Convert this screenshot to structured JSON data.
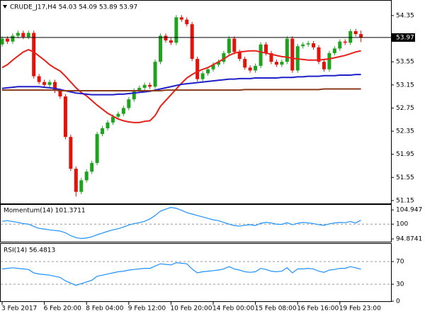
{
  "chart_data": [
    {
      "type": "candlestick",
      "title": "CRUDE_J17,H4 54.03 54.09 53.89 53.97",
      "categories": [
        "3 Feb 2017",
        null,
        null,
        null,
        null,
        null,
        null,
        null,
        "6 Feb 20:00",
        null,
        null,
        null,
        null,
        null,
        null,
        null,
        "8 Feb 04:00",
        null,
        null,
        null,
        null,
        null,
        null,
        null,
        "9 Feb 12:00",
        null,
        null,
        null,
        null,
        null,
        null,
        null,
        "10 Feb 20:00",
        null,
        null,
        null,
        null,
        null,
        null,
        null,
        "14 Feb 00:00",
        null,
        null,
        null,
        null,
        null,
        null,
        null,
        "15 Feb 08:00",
        null,
        null,
        null,
        null,
        null,
        null,
        null,
        "16 Feb 16:00",
        null,
        null,
        null,
        null,
        null,
        null,
        null,
        "19 Feb 23:00",
        null,
        null,
        null,
        null
      ],
      "open": [
        53.85,
        53.95,
        53.9,
        54.0,
        54.05,
        53.98,
        54.05,
        53.3,
        53.2,
        53.15,
        53.2,
        53.05,
        52.95,
        52.25,
        51.7,
        51.3,
        51.5,
        51.65,
        51.8,
        52.3,
        52.4,
        52.5,
        52.6,
        52.65,
        52.75,
        52.9,
        53.05,
        53.1,
        53.15,
        53.12,
        53.55,
        54.0,
        53.92,
        53.88,
        54.32,
        54.28,
        54.2,
        53.6,
        53.25,
        53.35,
        53.42,
        53.5,
        53.55,
        53.7,
        53.95,
        53.72,
        53.6,
        53.45,
        53.4,
        53.48,
        53.85,
        53.7,
        53.55,
        53.5,
        53.55,
        53.95,
        53.4,
        53.82,
        53.85,
        53.87,
        53.8,
        53.55,
        53.42,
        53.7,
        53.78,
        53.9,
        53.88,
        54.08,
        54.03
      ],
      "high": [
        53.99,
        53.99,
        54.04,
        54.09,
        54.09,
        54.09,
        54.09,
        53.34,
        53.24,
        53.24,
        53.24,
        53.09,
        52.99,
        52.29,
        51.74,
        51.54,
        51.69,
        51.84,
        52.34,
        52.44,
        52.54,
        52.64,
        52.69,
        52.79,
        52.94,
        53.09,
        53.14,
        53.19,
        53.19,
        53.59,
        54.04,
        54.04,
        53.96,
        54.36,
        54.36,
        54.32,
        54.24,
        53.64,
        53.39,
        53.46,
        53.54,
        53.59,
        53.74,
        53.99,
        53.99,
        53.76,
        53.64,
        53.49,
        53.52,
        53.89,
        53.89,
        53.74,
        53.59,
        53.59,
        53.99,
        53.99,
        53.86,
        53.89,
        53.91,
        53.91,
        53.84,
        53.59,
        53.74,
        53.82,
        53.94,
        53.94,
        54.12,
        54.12,
        54.09
      ],
      "low": [
        53.81,
        53.86,
        53.86,
        53.96,
        53.94,
        53.94,
        53.26,
        53.16,
        53.11,
        53.11,
        53.01,
        52.91,
        52.21,
        51.66,
        51.22,
        51.26,
        51.46,
        51.61,
        51.76,
        52.26,
        52.36,
        52.46,
        52.56,
        52.61,
        52.71,
        52.86,
        53.01,
        53.06,
        53.08,
        53.08,
        53.51,
        53.88,
        53.84,
        53.84,
        54.24,
        54.16,
        53.56,
        53.21,
        53.21,
        53.31,
        53.38,
        53.46,
        53.51,
        53.66,
        53.68,
        53.56,
        53.41,
        53.36,
        53.36,
        53.44,
        53.66,
        53.51,
        53.46,
        53.46,
        53.51,
        53.36,
        53.36,
        53.78,
        53.81,
        53.76,
        53.51,
        53.38,
        53.38,
        53.66,
        53.74,
        53.84,
        53.84,
        53.99,
        53.89
      ],
      "close": [
        53.95,
        53.9,
        54.0,
        54.05,
        53.98,
        54.05,
        53.3,
        53.2,
        53.15,
        53.2,
        53.05,
        52.95,
        52.25,
        51.7,
        51.3,
        51.5,
        51.65,
        51.8,
        52.3,
        52.4,
        52.5,
        52.6,
        52.65,
        52.75,
        52.9,
        53.05,
        53.1,
        53.15,
        53.12,
        53.55,
        54.0,
        53.92,
        53.88,
        54.32,
        54.28,
        54.2,
        53.6,
        53.25,
        53.35,
        53.42,
        53.5,
        53.55,
        53.7,
        53.95,
        53.72,
        53.6,
        53.45,
        53.4,
        53.48,
        53.85,
        53.7,
        53.55,
        53.5,
        53.55,
        53.95,
        53.4,
        53.82,
        53.85,
        53.87,
        53.8,
        53.55,
        53.42,
        53.7,
        53.78,
        53.9,
        53.88,
        54.08,
        54.03,
        53.97
      ],
      "up_color": "#1fa31f",
      "down_color": "#e3120b",
      "series": [
        {
          "color": "#e8201a",
          "values": [
            53.45,
            53.5,
            53.58,
            53.65,
            53.72,
            53.76,
            53.72,
            53.65,
            53.58,
            53.5,
            53.44,
            53.39,
            53.3,
            53.2,
            53.1,
            53.02,
            52.96,
            52.88,
            52.8,
            52.73,
            52.66,
            52.61,
            52.56,
            52.53,
            52.51,
            52.5,
            52.5,
            52.52,
            52.53,
            52.62,
            52.78,
            52.88,
            52.98,
            53.08,
            53.18,
            53.27,
            53.33,
            53.38,
            53.42,
            53.45,
            53.5,
            53.55,
            53.6,
            53.66,
            53.7,
            53.72,
            53.73,
            53.74,
            53.74,
            53.72,
            53.7,
            53.68,
            53.66,
            53.64,
            53.63,
            53.61,
            53.6,
            53.59,
            53.58,
            53.58,
            53.58,
            53.59,
            53.6,
            53.62,
            53.64,
            53.66,
            53.69,
            53.72,
            53.74
          ]
        },
        {
          "color": "#2020c8",
          "values": [
            53.09,
            53.1,
            53.11,
            53.12,
            53.12,
            53.12,
            53.12,
            53.12,
            53.11,
            53.1,
            53.09,
            53.07,
            53.05,
            53.03,
            53.01,
            53.0,
            52.99,
            52.98,
            52.98,
            52.98,
            52.98,
            52.98,
            52.99,
            52.99,
            53.0,
            53.01,
            53.02,
            53.03,
            53.04,
            53.06,
            53.08,
            53.1,
            53.12,
            53.14,
            53.16,
            53.17,
            53.18,
            53.19,
            53.2,
            53.21,
            53.22,
            53.23,
            53.24,
            53.25,
            53.25,
            53.26,
            53.26,
            53.26,
            53.27,
            53.27,
            53.27,
            53.27,
            53.27,
            53.28,
            53.28,
            53.28,
            53.29,
            53.29,
            53.3,
            53.3,
            53.3,
            53.31,
            53.31,
            53.31,
            53.32,
            53.32,
            53.32,
            53.33,
            53.33
          ]
        },
        {
          "color": "#8b3a1a",
          "values": [
            53.06,
            53.06,
            53.06,
            53.06,
            53.06,
            53.06,
            53.06,
            53.06,
            53.06,
            53.06,
            53.06,
            53.05,
            53.05,
            53.05,
            53.05,
            53.05,
            53.05,
            53.05,
            53.05,
            53.05,
            53.05,
            53.05,
            53.05,
            53.05,
            53.05,
            53.05,
            53.05,
            53.05,
            53.05,
            53.05,
            53.05,
            53.06,
            53.06,
            53.06,
            53.06,
            53.06,
            53.06,
            53.06,
            53.06,
            53.06,
            53.06,
            53.06,
            53.06,
            53.06,
            53.06,
            53.06,
            53.07,
            53.07,
            53.07,
            53.07,
            53.07,
            53.07,
            53.07,
            53.07,
            53.07,
            53.07,
            53.07,
            53.07,
            53.07,
            53.07,
            53.07,
            53.08,
            53.08,
            53.08,
            53.08,
            53.08,
            53.08,
            53.08,
            53.08
          ]
        }
      ],
      "last_price": 53.97,
      "ylim": [
        51.1,
        54.57
      ],
      "yticks": [
        54.35,
        53.55,
        53.15,
        52.75,
        52.35,
        51.95,
        51.55,
        51.15
      ]
    },
    {
      "type": "line",
      "title": "Momentum(14) 101.3711",
      "series": [
        {
          "color": "#1e90ff",
          "values": [
            101.0,
            101.2,
            100.9,
            100.6,
            100.2,
            100.0,
            99.2,
            98.5,
            98.3,
            98.0,
            97.8,
            97.6,
            97.0,
            96.0,
            95.3,
            95.0,
            95.2,
            95.6,
            96.3,
            96.9,
            97.5,
            98.0,
            98.4,
            99.0,
            99.7,
            100.2,
            100.5,
            101.0,
            101.8,
            103.0,
            104.5,
            105.2,
            105.8,
            105.5,
            104.8,
            104.0,
            103.5,
            103.0,
            102.5,
            102.0,
            101.5,
            101.2,
            100.6,
            100.0,
            99.5,
            99.3,
            99.6,
            99.8,
            99.5,
            100.3,
            100.6,
            100.4,
            100.0,
            99.9,
            100.5,
            99.8,
            100.3,
            100.6,
            100.4,
            100.2,
            99.8,
            99.6,
            100.1,
            100.4,
            100.6,
            100.5,
            100.9,
            100.4,
            101.3711
          ]
        }
      ],
      "levels": [
        100
      ],
      "ylim": [
        93.9,
        106.7
      ],
      "yticks": [
        104.947,
        100,
        94.8741
      ]
    },
    {
      "type": "line",
      "title": "RSI(14) 56.4813",
      "series": [
        {
          "color": "#1e90ff",
          "values": [
            57,
            58,
            59,
            58,
            57,
            56,
            50,
            48,
            47,
            46,
            44,
            42,
            36,
            32,
            28,
            31,
            34,
            37,
            44,
            46,
            48,
            50,
            52,
            53,
            55,
            56,
            57,
            58,
            58,
            62,
            66,
            65,
            64,
            68,
            67,
            66,
            57,
            50,
            52,
            53,
            54,
            55,
            57,
            61,
            57,
            55,
            52,
            51,
            52,
            58,
            56,
            53,
            52,
            53,
            59,
            50,
            57,
            57,
            58,
            57,
            53,
            51,
            55,
            56,
            58,
            58,
            61,
            59,
            56.4813
          ]
        }
      ],
      "levels": [
        70,
        30
      ],
      "ylim": [
        0,
        100
      ],
      "yticks": [
        70,
        30,
        0
      ]
    }
  ]
}
